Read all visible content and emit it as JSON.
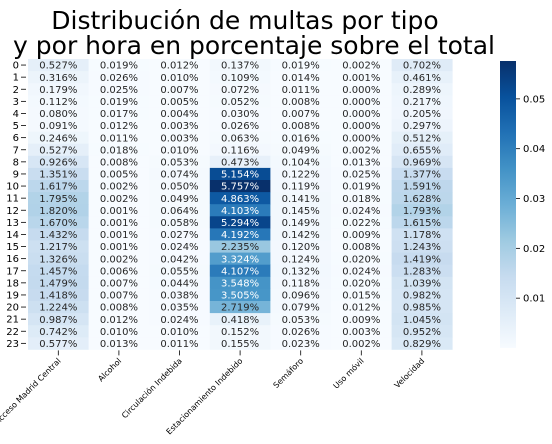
{
  "chart_data": {
    "type": "heatmap",
    "title_lines": [
      "Distribución de multas por tipo",
      "y por hora en porcentaje sobre el total"
    ],
    "xlabel": "",
    "ylabel": "",
    "columns": [
      "Acceso Madrid Central",
      "Alcohol",
      "Circulación Indebida",
      "Estacionamiento Indebido",
      "Semáforo",
      "Uso móvil",
      "Velocidad"
    ],
    "rows": [
      "0",
      "1",
      "2",
      "3",
      "4",
      "5",
      "6",
      "7",
      "8",
      "9",
      "10",
      "11",
      "12",
      "13",
      "14",
      "15",
      "16",
      "17",
      "18",
      "19",
      "20",
      "21",
      "22",
      "23"
    ],
    "values": [
      [
        0.527,
        0.019,
        0.012,
        0.137,
        0.019,
        0.002,
        0.702
      ],
      [
        0.316,
        0.026,
        0.01,
        0.109,
        0.014,
        0.001,
        0.461
      ],
      [
        0.179,
        0.025,
        0.007,
        0.072,
        0.011,
        0.0,
        0.289
      ],
      [
        0.112,
        0.019,
        0.005,
        0.052,
        0.008,
        0.0,
        0.217
      ],
      [
        0.08,
        0.017,
        0.004,
        0.03,
        0.007,
        0.0,
        0.205
      ],
      [
        0.091,
        0.012,
        0.003,
        0.026,
        0.008,
        0.0,
        0.297
      ],
      [
        0.246,
        0.011,
        0.003,
        0.063,
        0.016,
        0.0,
        0.512
      ],
      [
        0.527,
        0.018,
        0.01,
        0.116,
        0.049,
        0.002,
        0.655
      ],
      [
        0.926,
        0.008,
        0.053,
        0.473,
        0.104,
        0.013,
        0.969
      ],
      [
        1.351,
        0.005,
        0.074,
        5.154,
        0.122,
        0.025,
        1.377
      ],
      [
        1.617,
        0.002,
        0.05,
        5.757,
        0.119,
        0.019,
        1.591
      ],
      [
        1.795,
        0.002,
        0.049,
        4.863,
        0.141,
        0.018,
        1.628
      ],
      [
        1.82,
        0.001,
        0.064,
        4.103,
        0.145,
        0.024,
        1.793
      ],
      [
        1.67,
        0.001,
        0.058,
        5.294,
        0.149,
        0.022,
        1.615
      ],
      [
        1.432,
        0.001,
        0.027,
        4.192,
        0.142,
        0.009,
        1.178
      ],
      [
        1.217,
        0.001,
        0.024,
        2.235,
        0.12,
        0.008,
        1.243
      ],
      [
        1.326,
        0.002,
        0.042,
        3.324,
        0.124,
        0.02,
        1.419
      ],
      [
        1.457,
        0.006,
        0.055,
        4.107,
        0.132,
        0.024,
        1.283
      ],
      [
        1.479,
        0.007,
        0.044,
        3.548,
        0.118,
        0.02,
        1.039
      ],
      [
        1.418,
        0.007,
        0.038,
        3.505,
        0.096,
        0.015,
        0.982
      ],
      [
        1.224,
        0.008,
        0.035,
        2.719,
        0.079,
        0.012,
        0.985
      ],
      [
        0.987,
        0.012,
        0.024,
        0.418,
        0.053,
        0.009,
        1.045
      ],
      [
        0.742,
        0.01,
        0.01,
        0.152,
        0.026,
        0.003,
        0.952
      ],
      [
        0.577,
        0.013,
        0.011,
        0.155,
        0.023,
        0.002,
        0.829
      ]
    ],
    "value_suffix": "%",
    "colormap": "Blues",
    "colorbar": {
      "vmin": 0.0,
      "vmax": 0.0576,
      "ticks": [
        0.01,
        0.02,
        0.03,
        0.04,
        0.05
      ],
      "tick_labels": [
        "0.01",
        "0.02",
        "0.03",
        "0.04",
        "0.05"
      ]
    },
    "colors": {
      "blues_stops": [
        "#f7fbff",
        "#deebf7",
        "#c6dbef",
        "#9ecae1",
        "#6baed6",
        "#4292c6",
        "#2171b5",
        "#08519c",
        "#08306b"
      ],
      "text_dark": "#262626",
      "text_light": "#ffffff"
    }
  }
}
